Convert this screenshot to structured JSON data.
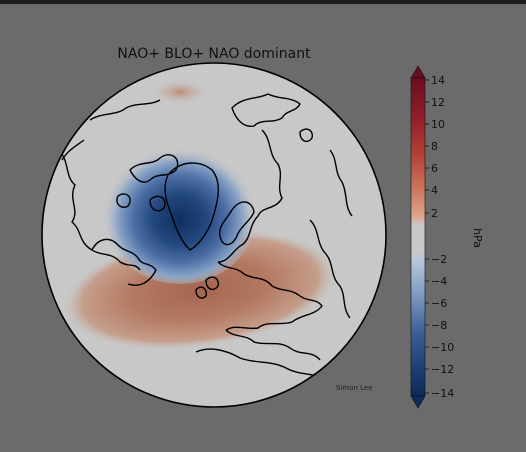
{
  "title": "NAO+ BLO+ NAO dominant",
  "credit": "Simon Lee",
  "colorbar": {
    "unit": "hPa",
    "ticks": [
      "14",
      "12",
      "10",
      "8",
      "6",
      "4",
      "2",
      "-2",
      "-4",
      "-6",
      "-8",
      "-10",
      "-12",
      "-14"
    ],
    "colors": {
      "positive": [
        "#f2dcd2",
        "#e8bfac",
        "#dd9e84",
        "#cf7c62",
        "#bd5a45",
        "#a83a33",
        "#8e1f2a",
        "#6a0d1f"
      ],
      "negative": [
        "#d8dde6",
        "#bccbdf",
        "#9fb6d4",
        "#7f9bc3",
        "#5c7db0",
        "#3d5f98",
        "#21457c",
        "#0d2b58"
      ],
      "neutral": "#c8c8c8"
    }
  },
  "map": {
    "land_outline_color": "#000000",
    "background": "#c8c8c8"
  }
}
